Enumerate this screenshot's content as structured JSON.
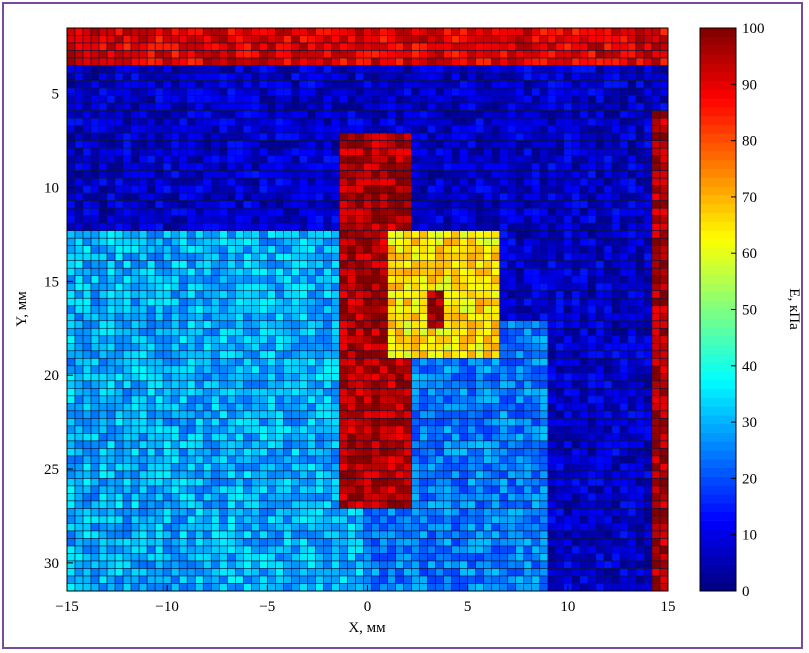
{
  "colors": {
    "frame": "#7a4a9a",
    "background": "#1f3a93",
    "gridline": "#0d1640",
    "colormap": "jet"
  },
  "chart_data": {
    "type": "heatmap",
    "xlabel": "X, мм",
    "ylabel": "Y, мм",
    "colorbar_label": "E, кПа",
    "xlim": [
      -15,
      15
    ],
    "ylim": [
      1.5,
      31.5
    ],
    "clim": [
      0,
      100
    ],
    "y_inverted": true,
    "x_ticks": [
      -15,
      -10,
      -5,
      0,
      5,
      10,
      15
    ],
    "x_tick_labels": [
      "−15",
      "−10",
      "−5",
      "0",
      "5",
      "10",
      "15"
    ],
    "y_ticks": [
      5,
      10,
      15,
      20,
      25,
      30
    ],
    "y_tick_labels": [
      "5",
      "10",
      "15",
      "20",
      "25",
      "30"
    ],
    "colorbar_ticks": [
      0,
      10,
      20,
      30,
      40,
      50,
      60,
      70,
      80,
      90,
      100
    ],
    "colorbar_tick_labels": [
      "0",
      "10",
      "20",
      "30",
      "40",
      "50",
      "60",
      "70",
      "80",
      "90",
      "100"
    ],
    "grid_resolution": [
      75,
      75
    ],
    "regions": [
      {
        "name": "background",
        "value": 8
      },
      {
        "name": "left tissue field",
        "value": 30,
        "x": [
          -15,
          0
        ],
        "y": [
          12.5,
          31.5
        ]
      },
      {
        "name": "right tissue field",
        "value": 25,
        "x": [
          0,
          9
        ],
        "y": [
          17,
          31.5
        ]
      },
      {
        "name": "inclusion (stiff band)",
        "value": 95,
        "x": [
          -1.5,
          2
        ],
        "y": [
          7,
          27
        ]
      },
      {
        "name": "yellow region",
        "value": 65,
        "x": [
          1,
          6.5
        ],
        "y": [
          12.5,
          19
        ]
      },
      {
        "name": "red patch",
        "value": 95,
        "x": [
          3,
          3.8
        ],
        "y": [
          15.5,
          17.5
        ]
      },
      {
        "name": "right edge column",
        "value": 95,
        "x": [
          14.2,
          15
        ],
        "y": [
          6,
          31.5
        ]
      },
      {
        "name": "top band",
        "value": 90,
        "x": [
          -15,
          15
        ],
        "y": [
          1.5,
          3.5
        ]
      }
    ]
  }
}
